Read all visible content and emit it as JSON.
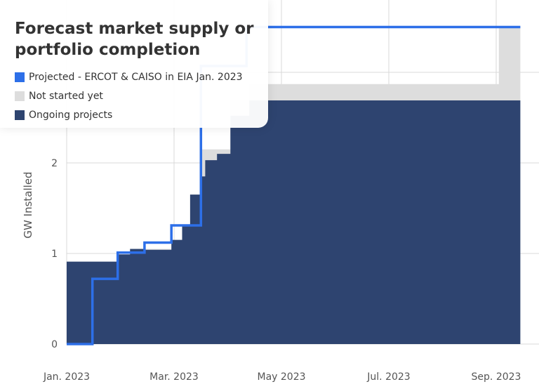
{
  "chart_data": {
    "type": "area",
    "title": "Forecast market supply or portfolio completion",
    "ylabel": "GW Installed",
    "xlabel": "",
    "x_tick_labels": [
      "Jan. 2023",
      "Mar. 2023",
      "May 2023",
      "Jul. 2023",
      "Sep. 2023"
    ],
    "x_tick_months": [
      0,
      2,
      4,
      6,
      8
    ],
    "xlim": [
      0,
      8.45
    ],
    "y_tick_labels": [
      "0",
      "1",
      "2"
    ],
    "y_ticks": [
      0,
      1,
      2
    ],
    "ylim": [
      0,
      3.5
    ],
    "grid": true,
    "legend_placement": "top-left",
    "series": [
      {
        "name": "Projected - ERCOT & CAISO in EIA Jan. 2023",
        "style": "step-line",
        "color": "#2d6fe8",
        "points": [
          [
            0,
            0
          ],
          [
            0.48,
            0
          ],
          [
            0.48,
            0.72
          ],
          [
            0.95,
            0.72
          ],
          [
            0.95,
            1.01
          ],
          [
            1.45,
            1.01
          ],
          [
            1.45,
            1.12
          ],
          [
            1.95,
            1.12
          ],
          [
            1.95,
            1.31
          ],
          [
            2.5,
            1.31
          ],
          [
            2.5,
            3.07
          ],
          [
            3.35,
            3.07
          ],
          [
            3.35,
            3.5
          ],
          [
            8.45,
            3.5
          ]
        ]
      },
      {
        "name": "Not started yet",
        "style": "step-area",
        "color": "#dddddd",
        "points": [
          [
            0,
            0.91
          ],
          [
            1.18,
            0.91
          ],
          [
            1.18,
            1.05
          ],
          [
            2.3,
            1.05
          ],
          [
            2.3,
            1.65
          ],
          [
            2.52,
            1.65
          ],
          [
            2.52,
            2.15
          ],
          [
            3.05,
            2.15
          ],
          [
            3.05,
            2.7
          ],
          [
            3.4,
            2.7
          ],
          [
            3.4,
            2.87
          ],
          [
            8.05,
            2.87
          ],
          [
            8.05,
            3.5
          ],
          [
            8.45,
            3.5
          ]
        ]
      },
      {
        "name": "Ongoing projects",
        "style": "step-area",
        "color": "#2e4470",
        "points": [
          [
            0,
            0.91
          ],
          [
            0.95,
            0.91
          ],
          [
            0.95,
            0.99
          ],
          [
            1.18,
            0.99
          ],
          [
            1.18,
            1.05
          ],
          [
            1.45,
            1.05
          ],
          [
            1.45,
            1.04
          ],
          [
            1.95,
            1.04
          ],
          [
            1.95,
            1.15
          ],
          [
            2.15,
            1.15
          ],
          [
            2.15,
            1.3
          ],
          [
            2.3,
            1.3
          ],
          [
            2.3,
            1.65
          ],
          [
            2.52,
            1.65
          ],
          [
            2.52,
            1.85
          ],
          [
            2.58,
            1.85
          ],
          [
            2.58,
            2.03
          ],
          [
            2.8,
            2.03
          ],
          [
            2.8,
            2.1
          ],
          [
            3.05,
            2.1
          ],
          [
            3.05,
            2.52
          ],
          [
            3.4,
            2.52
          ],
          [
            3.4,
            2.69
          ],
          [
            8.45,
            2.69
          ]
        ]
      }
    ]
  },
  "colors": {
    "projected": "#2d6fe8",
    "not_started": "#dddddd",
    "ongoing": "#2e4470",
    "grid": "#d8d8d8"
  }
}
